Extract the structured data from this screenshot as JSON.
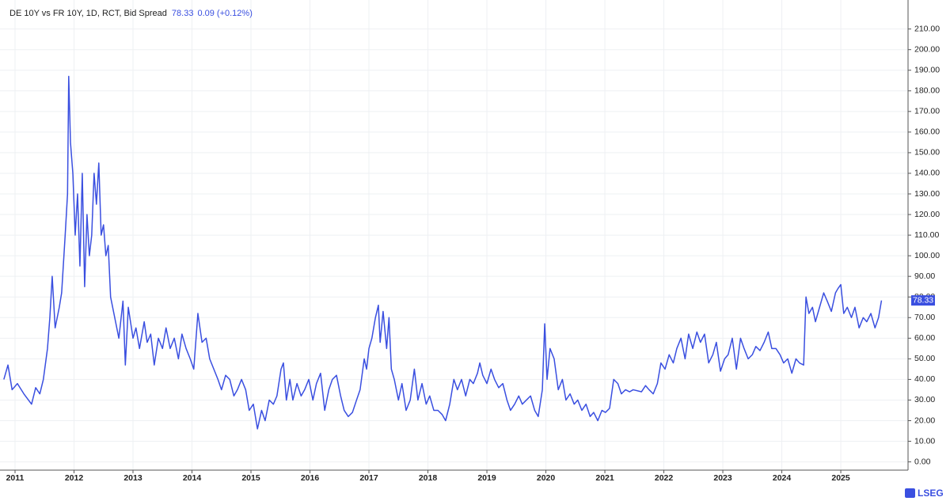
{
  "chart_data": {
    "type": "line",
    "title": "DE 10Y vs FR 10Y, 1D, RCT, Bid Spread",
    "last_value": 78.33,
    "change": "0.09 (+0.12%)",
    "brand": "LSEG",
    "grid": true,
    "xlim": [
      2010.745,
      2026.14
    ],
    "ylim": [
      -4,
      221
    ],
    "xticks": [
      {
        "value": 2011,
        "label": "2011"
      },
      {
        "value": 2012,
        "label": "2012"
      },
      {
        "value": 2013,
        "label": "2013"
      },
      {
        "value": 2014,
        "label": "2014"
      },
      {
        "value": 2015,
        "label": "2015"
      },
      {
        "value": 2016,
        "label": "2016"
      },
      {
        "value": 2017,
        "label": "2017"
      },
      {
        "value": 2018,
        "label": "2018"
      },
      {
        "value": 2019,
        "label": "2019"
      },
      {
        "value": 2020,
        "label": "2020"
      },
      {
        "value": 2021,
        "label": "2021"
      },
      {
        "value": 2022,
        "label": "2022"
      },
      {
        "value": 2023,
        "label": "2023"
      },
      {
        "value": 2024,
        "label": "2024"
      },
      {
        "value": 2025,
        "label": "2025"
      }
    ],
    "yticks": [
      {
        "value": 0,
        "label": "0.00"
      },
      {
        "value": 10,
        "label": "10.00"
      },
      {
        "value": 20,
        "label": "20.00"
      },
      {
        "value": 30,
        "label": "30.00"
      },
      {
        "value": 40,
        "label": "40.00"
      },
      {
        "value": 50,
        "label": "50.00"
      },
      {
        "value": 60,
        "label": "60.00"
      },
      {
        "value": 70,
        "label": "70.00"
      },
      {
        "value": 80,
        "label": "80.00"
      },
      {
        "value": 90,
        "label": "90.00"
      },
      {
        "value": 100,
        "label": "100.00"
      },
      {
        "value": 110,
        "label": "110.00"
      },
      {
        "value": 120,
        "label": "120.00"
      },
      {
        "value": 130,
        "label": "130.00"
      },
      {
        "value": 140,
        "label": "140.00"
      },
      {
        "value": 150,
        "label": "150.00"
      },
      {
        "value": 160,
        "label": "160.00"
      },
      {
        "value": 170,
        "label": "170.00"
      },
      {
        "value": 180,
        "label": "180.00"
      },
      {
        "value": 190,
        "label": "190.00"
      },
      {
        "value": 200,
        "label": "200.00"
      },
      {
        "value": 210,
        "label": "210.00"
      }
    ],
    "x": [
      2010.81,
      2010.88,
      2010.95,
      2011.04,
      2011.15,
      2011.28,
      2011.35,
      2011.42,
      2011.48,
      2011.55,
      2011.59,
      2011.63,
      2011.68,
      2011.75,
      2011.79,
      2011.85,
      2011.89,
      2011.91,
      2011.94,
      2011.98,
      2012.02,
      2012.06,
      2012.1,
      2012.14,
      2012.18,
      2012.22,
      2012.26,
      2012.3,
      2012.34,
      2012.38,
      2012.42,
      2012.46,
      2012.5,
      2012.54,
      2012.58,
      2012.62,
      2012.69,
      2012.76,
      2012.83,
      2012.87,
      2012.92,
      2013.0,
      2013.05,
      2013.11,
      2013.19,
      2013.24,
      2013.3,
      2013.36,
      2013.43,
      2013.5,
      2013.56,
      2013.63,
      2013.7,
      2013.77,
      2013.83,
      2013.9,
      2013.97,
      2014.03,
      2014.1,
      2014.17,
      2014.24,
      2014.3,
      2014.37,
      2014.44,
      2014.5,
      2014.57,
      2014.64,
      2014.71,
      2014.77,
      2014.84,
      2014.91,
      2014.97,
      2015.04,
      2015.11,
      2015.18,
      2015.24,
      2015.31,
      2015.38,
      2015.44,
      2015.51,
      2015.55,
      2015.6,
      2015.66,
      2015.71,
      2015.78,
      2015.85,
      2015.91,
      2015.98,
      2016.05,
      2016.11,
      2016.18,
      2016.25,
      2016.32,
      2016.38,
      2016.45,
      2016.52,
      2016.58,
      2016.65,
      2016.72,
      2016.79,
      2016.85,
      2016.92,
      2016.96,
      2017.0,
      2017.05,
      2017.11,
      2017.16,
      2017.19,
      2017.24,
      2017.3,
      2017.34,
      2017.38,
      2017.43,
      2017.5,
      2017.56,
      2017.63,
      2017.7,
      2017.77,
      2017.83,
      2017.9,
      2017.97,
      2018.03,
      2018.1,
      2018.17,
      2018.24,
      2018.3,
      2018.37,
      2018.44,
      2018.5,
      2018.57,
      2018.64,
      2018.71,
      2018.77,
      2018.84,
      2018.88,
      2018.93,
      2019.0,
      2019.07,
      2019.13,
      2019.2,
      2019.27,
      2019.34,
      2019.4,
      2019.47,
      2019.54,
      2019.6,
      2019.67,
      2019.74,
      2019.81,
      2019.87,
      2019.94,
      2019.98,
      2020.02,
      2020.07,
      2020.14,
      2020.21,
      2020.28,
      2020.34,
      2020.41,
      2020.48,
      2020.54,
      2020.61,
      2020.68,
      2020.75,
      2020.81,
      2020.88,
      2020.95,
      2021.01,
      2021.08,
      2021.15,
      2021.22,
      2021.28,
      2021.35,
      2021.42,
      2021.48,
      2021.62,
      2021.69,
      2021.75,
      2021.82,
      2021.89,
      2021.95,
      2022.02,
      2022.09,
      2022.16,
      2022.22,
      2022.29,
      2022.36,
      2022.42,
      2022.49,
      2022.56,
      2022.62,
      2022.69,
      2022.76,
      2022.83,
      2022.89,
      2022.96,
      2023.03,
      2023.09,
      2023.16,
      2023.23,
      2023.3,
      2023.36,
      2023.43,
      2023.5,
      2023.56,
      2023.63,
      2023.7,
      2023.77,
      2023.83,
      2023.9,
      2023.97,
      2024.03,
      2024.1,
      2024.17,
      2024.24,
      2024.3,
      2024.37,
      2024.41,
      2024.46,
      2024.52,
      2024.57,
      2024.64,
      2024.71,
      2024.77,
      2024.84,
      2024.91,
      2024.95,
      2025.0,
      2025.05,
      2025.11,
      2025.18,
      2025.24,
      2025.31,
      2025.38,
      2025.44,
      2025.51,
      2025.58,
      2025.64,
      2025.69
    ],
    "series": [
      {
        "name": "Bid Spread",
        "color": "#3a4fe0",
        "values": [
          40,
          47,
          35,
          38,
          33,
          28,
          36,
          33,
          40,
          55,
          70,
          90,
          65,
          75,
          82,
          110,
          130,
          187,
          155,
          140,
          110,
          130,
          95,
          140,
          85,
          120,
          100,
          110,
          140,
          125,
          145,
          110,
          115,
          100,
          105,
          80,
          70,
          60,
          78,
          47,
          75,
          60,
          65,
          55,
          68,
          58,
          62,
          47,
          60,
          55,
          65,
          55,
          60,
          50,
          62,
          55,
          50,
          45,
          72,
          58,
          60,
          50,
          45,
          40,
          35,
          42,
          40,
          32,
          35,
          40,
          35,
          25,
          28,
          16,
          25,
          20,
          30,
          28,
          32,
          45,
          48,
          30,
          40,
          30,
          38,
          32,
          35,
          40,
          30,
          38,
          43,
          25,
          35,
          40,
          42,
          32,
          25,
          22,
          24,
          30,
          35,
          50,
          45,
          55,
          60,
          70,
          76,
          58,
          73,
          55,
          70,
          45,
          40,
          30,
          38,
          25,
          30,
          45,
          30,
          38,
          28,
          32,
          25,
          25,
          23,
          20,
          28,
          40,
          35,
          40,
          32,
          40,
          38,
          43,
          48,
          42,
          38,
          45,
          40,
          36,
          38,
          30,
          25,
          28,
          32,
          28,
          30,
          32,
          25,
          22,
          35,
          67,
          40,
          55,
          50,
          35,
          40,
          30,
          33,
          28,
          30,
          25,
          28,
          22,
          24,
          20,
          25,
          24,
          26,
          40,
          38,
          33,
          35,
          34,
          35,
          34,
          37,
          35,
          33,
          38,
          48,
          45,
          52,
          48,
          55,
          60,
          50,
          62,
          55,
          63,
          58,
          62,
          48,
          52,
          58,
          44,
          50,
          52,
          60,
          45,
          60,
          55,
          50,
          52,
          56,
          54,
          58,
          63,
          55,
          55,
          52,
          48,
          50,
          43,
          50,
          48,
          47,
          80,
          72,
          75,
          68,
          75,
          82,
          78,
          73,
          82,
          84,
          86,
          72,
          75,
          70,
          75,
          65,
          70,
          68,
          72,
          65,
          70,
          78.33
        ]
      }
    ]
  }
}
